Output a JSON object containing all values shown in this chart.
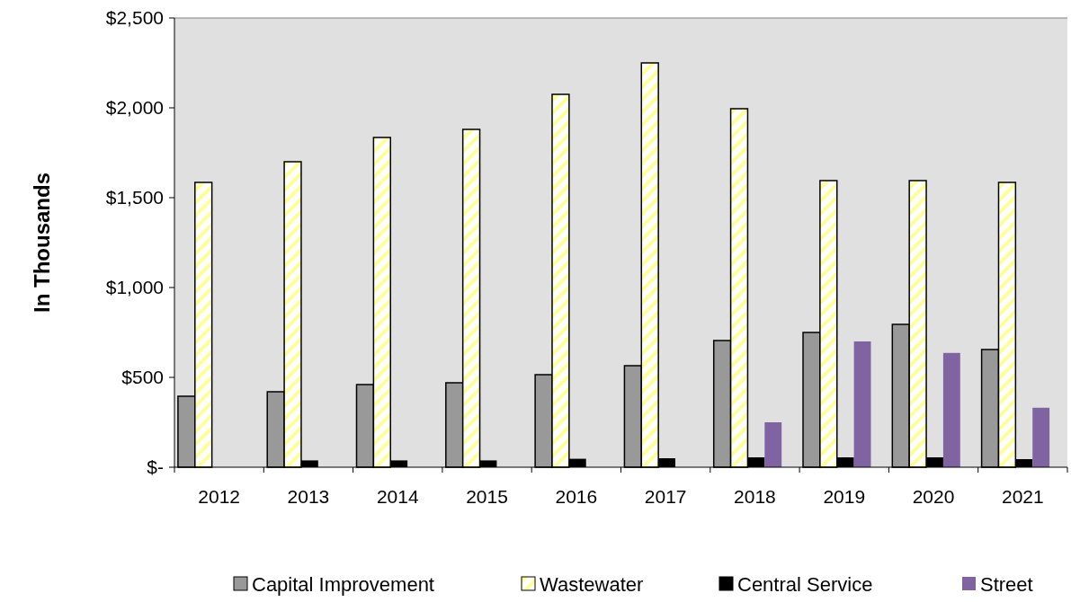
{
  "chart_data": {
    "type": "bar",
    "ylabel": "In Thousands",
    "categories": [
      "2012",
      "2013",
      "2014",
      "2015",
      "2016",
      "2017",
      "2018",
      "2019",
      "2020",
      "2021"
    ],
    "series": [
      {
        "name": "Capital Improvement",
        "color": "#999999",
        "values": [
          395,
          420,
          460,
          470,
          515,
          565,
          705,
          750,
          795,
          655
        ]
      },
      {
        "name": "Wastewater",
        "color": "#ffff99",
        "values": [
          1585,
          1700,
          1835,
          1880,
          2075,
          2250,
          1995,
          1595,
          1595,
          1585
        ]
      },
      {
        "name": "Central Service",
        "color": "#000000",
        "values": [
          null,
          38,
          38,
          38,
          47,
          50,
          55,
          55,
          55,
          45
        ]
      },
      {
        "name": "Street",
        "color": "#8064a2",
        "values": [
          null,
          null,
          null,
          null,
          null,
          null,
          250,
          700,
          636,
          331
        ]
      }
    ],
    "ylim": [
      0,
      2500
    ],
    "yticks": [
      {
        "value": 0,
        "label": "$-"
      },
      {
        "value": 500,
        "label": "$500"
      },
      {
        "value": 1000,
        "label": "$1,000"
      },
      {
        "value": 1500,
        "label": "$1,500"
      },
      {
        "value": 2000,
        "label": "$2,000"
      },
      {
        "value": 2500,
        "label": "$2,500"
      }
    ],
    "legend": "bottom"
  }
}
